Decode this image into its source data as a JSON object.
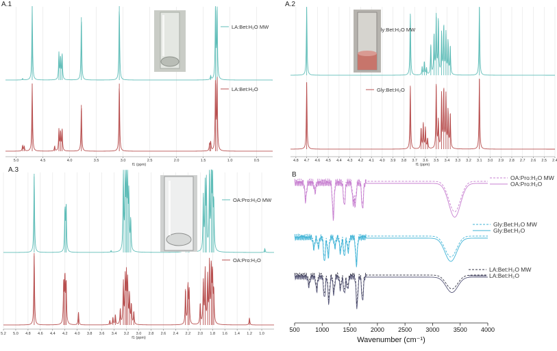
{
  "panels": {
    "a1": {
      "label": "A.1"
    },
    "a2": {
      "label": "A.2"
    },
    "a3": {
      "label": "A.3"
    },
    "b": {
      "label": "B"
    }
  },
  "chart_data": [
    {
      "id": "a1",
      "type": "line",
      "panel_label": "A.1",
      "xlabel": "f1 (ppm)",
      "xlim": [
        5.2,
        0.2
      ],
      "x_reversed": true,
      "xticks": [
        "5.0",
        "4.5",
        "4.0",
        "3.5",
        "3.0",
        "2.5",
        "2.0",
        "1.5",
        "1.0",
        "0.5"
      ],
      "grid": true,
      "series": [
        {
          "name": "LA:Bet:H₂O MW",
          "color": "#5fbdb8",
          "peaks": [
            [
              4.7,
              1.0
            ],
            [
              4.88,
              0.02
            ],
            [
              4.2,
              0.36
            ],
            [
              4.17,
              0.3
            ],
            [
              4.14,
              0.34
            ],
            [
              3.78,
              0.85
            ],
            [
              3.07,
              1.0
            ],
            [
              1.36,
              0.05
            ],
            [
              1.27,
              1.0
            ],
            [
              1.24,
              0.95
            ]
          ]
        },
        {
          "name": "LA:Bet:H₂O",
          "color": "#b85050",
          "peaks": [
            [
              4.7,
              0.95
            ],
            [
              4.88,
              0.08
            ],
            [
              4.85,
              0.07
            ],
            [
              4.28,
              0.07
            ],
            [
              4.2,
              0.3
            ],
            [
              4.17,
              0.27
            ],
            [
              4.14,
              0.3
            ],
            [
              3.78,
              0.65
            ],
            [
              3.07,
              0.95
            ],
            [
              1.38,
              0.1
            ],
            [
              1.36,
              0.12
            ],
            [
              1.27,
              1.0
            ],
            [
              1.24,
              1.0
            ]
          ]
        }
      ]
    },
    {
      "id": "a2",
      "type": "line",
      "panel_label": "A.2",
      "xlabel": "f1 (ppm)",
      "xlim": [
        4.85,
        2.4
      ],
      "x_reversed": true,
      "xticks": [
        "4.8",
        "4.7",
        "4.6",
        "4.5",
        "4.4",
        "4.3",
        "4.2",
        "4.1",
        "4.0",
        "3.9",
        "3.8",
        "3.7",
        "3.6",
        "3.5",
        "3.4",
        "3.3",
        "3.2",
        "3.1",
        "3.0",
        "2.9",
        "2.8",
        "2.7",
        "2.6",
        "2.5",
        "2.4"
      ],
      "grid": true,
      "series": [
        {
          "name": "Gly:Bet:H₂O MW",
          "color": "#5fbdb8",
          "peaks": [
            [
              4.7,
              1.0
            ],
            [
              3.74,
              0.9
            ],
            [
              3.63,
              0.12
            ],
            [
              3.61,
              0.2
            ],
            [
              3.59,
              0.1
            ],
            [
              3.55,
              0.45
            ],
            [
              3.52,
              0.6
            ],
            [
              3.5,
              0.85
            ],
            [
              3.48,
              0.8
            ],
            [
              3.45,
              0.62
            ],
            [
              3.43,
              0.72
            ],
            [
              3.41,
              0.6
            ],
            [
              3.39,
              0.5
            ],
            [
              3.37,
              0.42
            ],
            [
              3.1,
              1.0
            ]
          ]
        },
        {
          "name": "Gly:Bet:H₂O",
          "color": "#b85050",
          "peaks": [
            [
              4.7,
              0.95
            ],
            [
              3.74,
              0.9
            ],
            [
              3.64,
              0.3
            ],
            [
              3.62,
              0.36
            ],
            [
              3.6,
              0.3
            ],
            [
              3.58,
              0.15
            ],
            [
              3.5,
              0.9
            ],
            [
              3.48,
              0.4
            ],
            [
              3.45,
              0.8
            ],
            [
              3.43,
              0.85
            ],
            [
              3.41,
              0.75
            ],
            [
              3.39,
              0.55
            ],
            [
              3.37,
              0.5
            ],
            [
              3.1,
              1.0
            ]
          ]
        }
      ]
    },
    {
      "id": "a3",
      "type": "line",
      "panel_label": "A.3",
      "xlabel": "f1 (ppm)",
      "xlim": [
        5.2,
        0.8
      ],
      "x_reversed": true,
      "xticks": [
        "5.2",
        "5.0",
        "4.8",
        "4.6",
        "4.4",
        "4.2",
        "4.0",
        "3.8",
        "3.6",
        "3.4",
        "3.2",
        "3.0",
        "2.8",
        "2.6",
        "2.4",
        "2.2",
        "2.0",
        "1.8",
        "1.6",
        "1.4",
        "1.2",
        "1.0"
      ],
      "grid": true,
      "series": [
        {
          "name": "OA:Pro:H₂O MW",
          "color": "#5fbdb8",
          "peaks": [
            [
              4.7,
              1.0
            ],
            [
              4.2,
              0.55
            ],
            [
              4.18,
              0.6
            ],
            [
              3.45,
              0.02
            ],
            [
              3.25,
              1.0
            ],
            [
              3.22,
              0.95
            ],
            [
              3.2,
              0.9
            ],
            [
              3.18,
              0.85
            ],
            [
              3.16,
              0.7
            ],
            [
              3.13,
              0.4
            ],
            [
              2.23,
              0.55
            ],
            [
              2.2,
              0.6
            ],
            [
              2.18,
              0.45
            ],
            [
              1.95,
              0.7
            ],
            [
              1.92,
              0.8
            ],
            [
              1.9,
              0.85
            ],
            [
              1.85,
              1.0
            ],
            [
              1.82,
              1.0
            ],
            [
              1.8,
              0.95
            ],
            [
              1.78,
              0.6
            ],
            [
              0.95,
              0.05
            ]
          ]
        },
        {
          "name": "OA:Pro:H₂O",
          "color": "#b85050",
          "peaks": [
            [
              4.7,
              1.0
            ],
            [
              4.22,
              0.6
            ],
            [
              4.2,
              0.65
            ],
            [
              4.18,
              0.58
            ],
            [
              3.98,
              0.18
            ],
            [
              3.47,
              0.06
            ],
            [
              3.42,
              0.1
            ],
            [
              3.38,
              0.14
            ],
            [
              3.3,
              0.22
            ],
            [
              3.25,
              0.58
            ],
            [
              3.22,
              0.62
            ],
            [
              3.2,
              0.65
            ],
            [
              3.18,
              0.58
            ],
            [
              3.15,
              0.42
            ],
            [
              3.12,
              0.28
            ],
            [
              3.08,
              0.18
            ],
            [
              2.24,
              0.5
            ],
            [
              2.2,
              0.55
            ],
            [
              2.18,
              0.48
            ],
            [
              2.0,
              0.3
            ],
            [
              1.95,
              0.6
            ],
            [
              1.92,
              0.75
            ],
            [
              1.88,
              0.65
            ],
            [
              1.85,
              0.85
            ],
            [
              1.82,
              0.8
            ],
            [
              1.8,
              0.7
            ],
            [
              1.78,
              0.45
            ],
            [
              1.2,
              0.1
            ]
          ]
        }
      ]
    },
    {
      "id": "b",
      "type": "line",
      "panel_label": "B",
      "xlabel": "Wavenumber (cm⁻¹)",
      "xlim": [
        500,
        4000
      ],
      "xticks": [
        "500",
        "1000",
        "1500",
        "2000",
        "2500",
        "3000",
        "3500",
        "4000"
      ],
      "grid": false,
      "series": [
        {
          "name": "OA:Pro:H₂O MW",
          "color": "#c77fd0",
          "dashed": true,
          "group": "OA"
        },
        {
          "name": "OA:Pro:H₂O",
          "color": "#c77fd0",
          "dashed": false,
          "group": "OA"
        },
        {
          "name": "Gly:Bet:H₂O MW",
          "color": "#3fb3d6",
          "dashed": true,
          "group": "Gly"
        },
        {
          "name": "Gly:Bet:H₂O",
          "color": "#3fb3d6",
          "dashed": false,
          "group": "Gly"
        },
        {
          "name": "LA:Bet:H₂O MW",
          "color": "#333344",
          "dashed": true,
          "group": "LA"
        },
        {
          "name": "LA:Bet:H₂O",
          "color": "#555577",
          "dashed": false,
          "group": "LA"
        }
      ],
      "bands": {
        "OA": [
          [
            700,
            0.5
          ],
          [
            870,
            0.25
          ],
          [
            1200,
            1.0
          ],
          [
            1400,
            0.65
          ],
          [
            1560,
            0.55
          ],
          [
            1600,
            0.6
          ],
          [
            1730,
            0.75
          ],
          [
            3400,
            0.95
          ]
        ],
        "Gly": [
          [
            850,
            0.4
          ],
          [
            930,
            0.35
          ],
          [
            1040,
            0.9
          ],
          [
            1110,
            0.7
          ],
          [
            1230,
            0.35
          ],
          [
            1330,
            0.55
          ],
          [
            1400,
            0.7
          ],
          [
            1470,
            0.5
          ],
          [
            1620,
            1.0
          ],
          [
            3330,
            0.85
          ]
        ],
        "LA": [
          [
            760,
            0.3
          ],
          [
            900,
            0.45
          ],
          [
            1040,
            0.7
          ],
          [
            1120,
            0.85
          ],
          [
            1210,
            0.55
          ],
          [
            1330,
            0.4
          ],
          [
            1400,
            0.55
          ],
          [
            1460,
            0.4
          ],
          [
            1630,
            1.0
          ],
          [
            1730,
            0.8
          ],
          [
            3350,
            0.5
          ]
        ]
      }
    }
  ]
}
